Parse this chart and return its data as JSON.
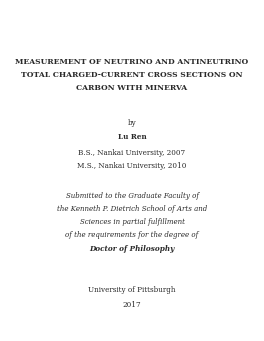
{
  "title_lines": [
    "MEASUREMENT OF NEUTRINO AND ANTINEUTRINO",
    "TOTAL CHARGED-CURRENT CROSS SECTIONS ON",
    "CARBON WITH MINERVA"
  ],
  "by_text": "by",
  "author": "Lu Ren",
  "degree_lines": [
    "B.S., Nankai University, 2007",
    "M.S., Nankai University, 2010"
  ],
  "submission_lines": [
    "Submitted to the Graduate Faculty of",
    "the Kenneth P. Dietrich School of Arts and",
    "Sciences in partial fulfillment",
    "of the requirements for the degree of"
  ],
  "degree_title": "Doctor of Philosophy",
  "institution": "University of Pittsburgh",
  "year": "2017",
  "background_color": "#ffffff",
  "text_color": "#2a2a2a",
  "title_fontsize": 5.5,
  "body_fontsize": 5.2,
  "small_fontsize": 5.0,
  "fig_width": 2.64,
  "fig_height": 3.41,
  "dpi": 100
}
